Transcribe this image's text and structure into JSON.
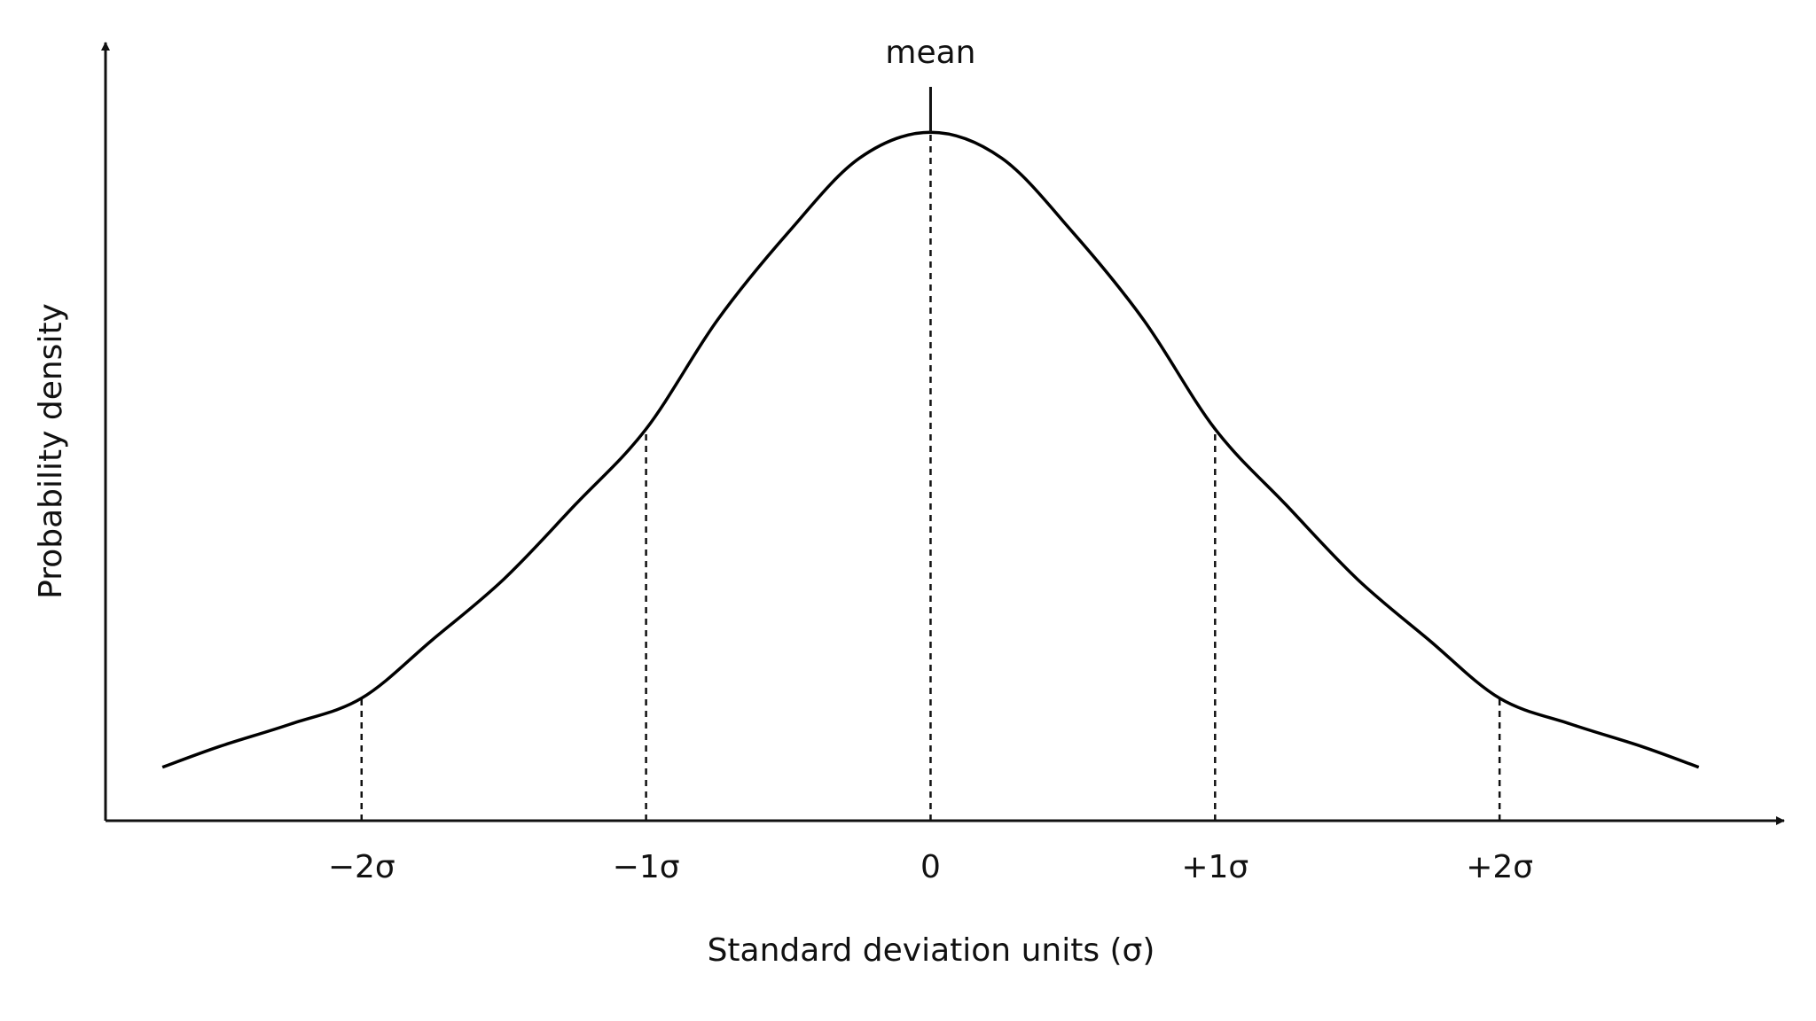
{
  "chart_data": {
    "type": "line",
    "y_label": "Probability density",
    "x_label": "Standard deviation units (σ)",
    "annotation": "mean",
    "x": [
      -2.7,
      -2.5,
      -2.25,
      -2,
      -1.75,
      -1.5,
      -1.25,
      -1,
      -0.75,
      -0.5,
      -0.25,
      0,
      0.25,
      0.5,
      0.75,
      1,
      1.25,
      1.5,
      1.75,
      2,
      2.25,
      2.5,
      2.7
    ],
    "series": [
      {
        "name": "density",
        "color": "#000000",
        "values": [
          0.031,
          0.043,
          0.056,
          0.071,
          0.105,
          0.14,
          0.183,
          0.227,
          0.29,
          0.341,
          0.384,
          0.399,
          0.384,
          0.341,
          0.29,
          0.227,
          0.183,
          0.14,
          0.105,
          0.071,
          0.056,
          0.043,
          0.031
        ]
      }
    ],
    "xlim": [
      -2.9,
      3.0
    ],
    "ylim": [
      0,
      0.45
    ],
    "xticks": [
      {
        "value": -2,
        "label": "−2σ"
      },
      {
        "value": -1,
        "label": "−1σ"
      },
      0,
      {
        "value": 1,
        "label": "+1σ"
      },
      {
        "value": 2,
        "label": "+2σ"
      }
    ],
    "grid": false
  }
}
